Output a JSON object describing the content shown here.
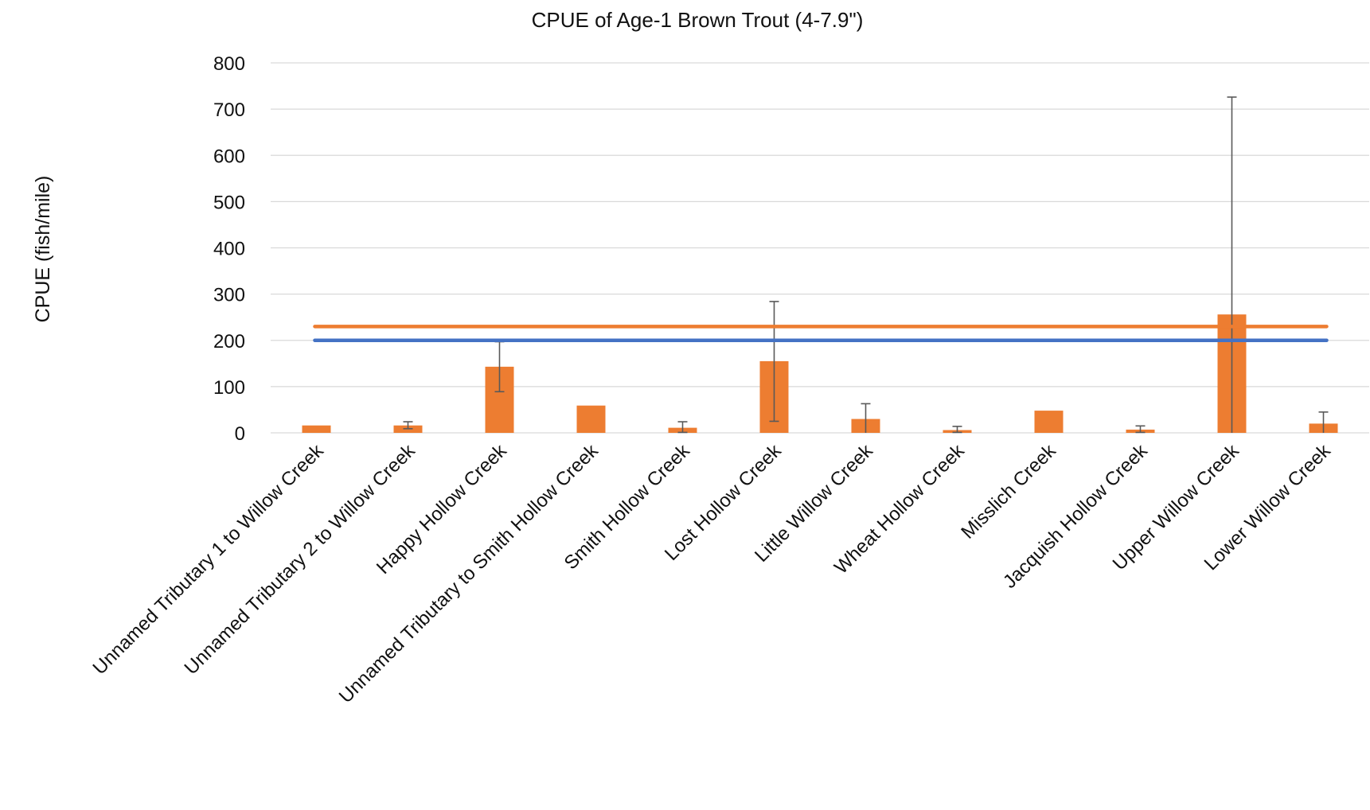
{
  "chart_data": {
    "type": "bar",
    "title": "CPUE of Age-1 Brown Trout (4-7.9\")",
    "xlabel": "",
    "ylabel": "CPUE (fish/mile)",
    "ylim": [
      0,
      800
    ],
    "yticks": [
      0,
      100,
      200,
      300,
      400,
      500,
      600,
      700,
      800
    ],
    "grid": true,
    "legend": "none",
    "categories": [
      "Unnamed Tributary 1 to Willow Creek",
      "Unnamed Tributary 2 to Willow Creek",
      "Happy Hollow Creek",
      "Unnamed Tributary to Smith Hollow Creek",
      "Smith Hollow Creek",
      "Lost Hollow Creek",
      "Little Willow Creek",
      "Wheat Hollow Creek",
      "Misslich Creek",
      "Jacquish Hollow Creek",
      "Upper Willow Creek",
      "Lower Willow Creek"
    ],
    "series": [
      {
        "color": "#ED7D31",
        "values": [
          16,
          16,
          143,
          59,
          11,
          155,
          30,
          6,
          48,
          7,
          256,
          20
        ],
        "error_low": [
          16,
          9,
          89,
          59,
          1,
          25,
          0,
          1,
          48,
          1,
          0,
          0
        ],
        "error_high": [
          16,
          24,
          197,
          59,
          24,
          284,
          63,
          14,
          48,
          15,
          726,
          45
        ]
      }
    ],
    "reference_lines": [
      {
        "value": 230,
        "color": "#ED7D31"
      },
      {
        "value": 200,
        "color": "#4472C4"
      }
    ],
    "colors": {
      "bar": "#ED7D31",
      "grid": "#D9D9D9",
      "error_bar": "#595959"
    }
  }
}
